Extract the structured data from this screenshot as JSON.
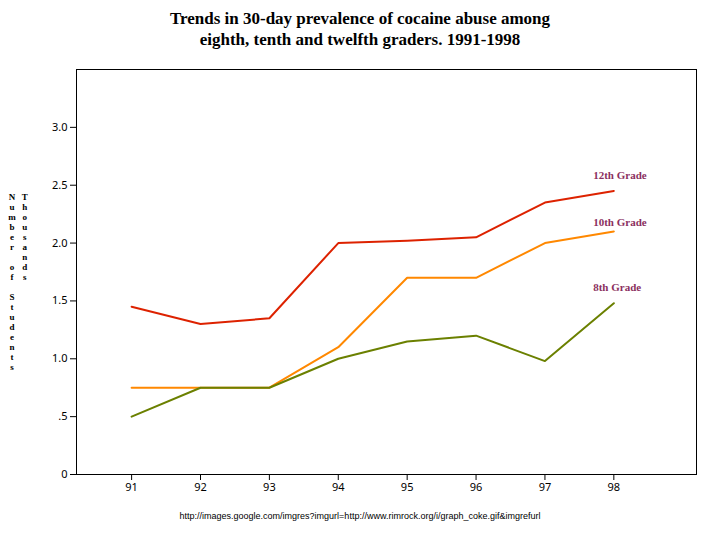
{
  "chart_data": {
    "type": "line",
    "title": "Trends in 30-day prevalence of cocaine abuse among\neighth, tenth and twelfth graders. 1991-1998",
    "ylabel": "Number of Students\nThousands",
    "caption": "http://images.google.com/imgres?imgurl=http://www.rimrock.org/i/graph_coke.gif&imgrefurl",
    "x": [
      91,
      92,
      93,
      94,
      95,
      96,
      97,
      98
    ],
    "series": [
      {
        "name": "12th Grade",
        "color": "#dd2200",
        "values": [
          1.45,
          1.3,
          1.35,
          2.0,
          2.02,
          2.05,
          2.35,
          2.45
        ]
      },
      {
        "name": "10th Grade",
        "color": "#ff8800",
        "values": [
          0.75,
          0.75,
          0.75,
          1.1,
          1.7,
          1.7,
          2.0,
          2.1
        ]
      },
      {
        "name": "8th Grade",
        "color": "#6b8000",
        "values": [
          0.5,
          0.75,
          0.75,
          1.0,
          1.15,
          1.2,
          0.98,
          1.48
        ]
      }
    ],
    "annotations": [
      {
        "text": "12th Grade",
        "x": 97.7,
        "y": 2.58,
        "color": "#8b3060"
      },
      {
        "text": "10th Grade",
        "x": 97.7,
        "y": 2.18,
        "color": "#8b3060"
      },
      {
        "text": "8th Grade",
        "x": 97.7,
        "y": 1.62,
        "color": "#8b3060"
      }
    ],
    "xlim": [
      90.2,
      99.2
    ],
    "xticks": [
      91,
      92,
      93,
      94,
      95,
      96,
      97,
      98
    ],
    "ylim": [
      0,
      3.5
    ],
    "yticks": [
      0,
      {
        "value": 0.5,
        "label": ".5"
      },
      {
        "value": 1.0,
        "label": "1.0"
      },
      {
        "value": 1.5,
        "label": "1.5"
      },
      {
        "value": 2.0,
        "label": "2.0"
      },
      {
        "value": 2.5,
        "label": "2.5"
      },
      {
        "value": 3.0,
        "label": "3.0"
      }
    ],
    "grid": false
  }
}
